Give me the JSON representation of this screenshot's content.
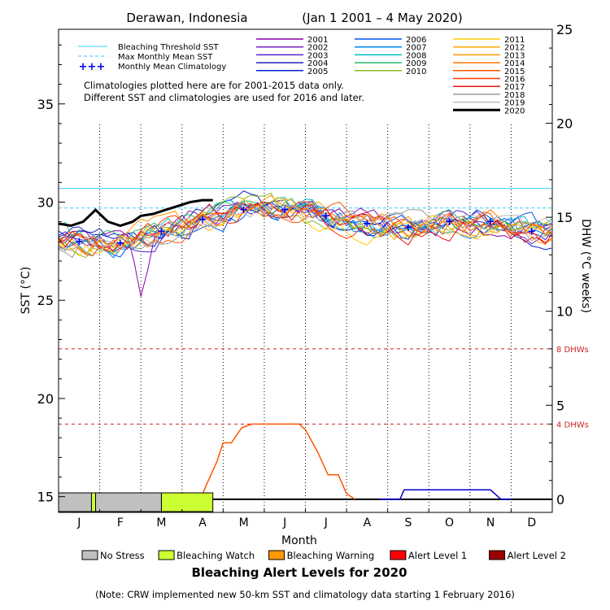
{
  "chart_data": {
    "type": "line",
    "title_left": "Derawan, Indonesia",
    "title_right": "(Jan 1 2001 – 4 May 2020)",
    "xlabel": "Month",
    "ylabel_left": "SST (°C)",
    "ylabel_right": "DHW (°C weeks)",
    "months": [
      "J",
      "F",
      "M",
      "A",
      "M",
      "J",
      "J",
      "A",
      "S",
      "O",
      "N",
      "D"
    ],
    "sst_axis": {
      "ylim": [
        14.2,
        38.8
      ],
      "ticks": [
        15,
        20,
        25,
        30,
        35
      ]
    },
    "dhw_axis": {
      "ylim": [
        -0.7,
        25
      ],
      "ticks": [
        0,
        5,
        10,
        15,
        20,
        25
      ]
    },
    "thresholds": {
      "bleaching_threshold_sst": 30.7,
      "max_monthly_mean_sst": 29.7,
      "dhw_8_level": 8,
      "dhw_4_level": 4,
      "dhw_8_label": "8 DHWs",
      "dhw_4_label": "4 DHWs",
      "ref_color": "#cc2222"
    },
    "legend_refs": [
      {
        "label": "Bleaching Threshold SST",
        "color": "#33ccff",
        "style": "solid"
      },
      {
        "label": "Max Monthly Mean SST",
        "color": "#33ccff",
        "style": "dashed"
      },
      {
        "label": "Monthly Mean Climatology",
        "color": "#0000ee",
        "style": "plus"
      }
    ],
    "monthly_mean_climatology": [
      28.0,
      27.9,
      28.5,
      29.1,
      29.6,
      29.6,
      29.3,
      28.9,
      28.7,
      29.0,
      29.0,
      28.5
    ],
    "year_series": [
      {
        "name": "2001",
        "color": "#8800aa"
      },
      {
        "name": "2002",
        "color": "#7722bb"
      },
      {
        "name": "2003",
        "color": "#5522cc"
      },
      {
        "name": "2004",
        "color": "#2222bb"
      },
      {
        "name": "2005",
        "color": "#0022cc"
      },
      {
        "name": "2006",
        "color": "#0055ee"
      },
      {
        "name": "2007",
        "color": "#0088ee"
      },
      {
        "name": "2008",
        "color": "#00bbcc"
      },
      {
        "name": "2009",
        "color": "#22bb66"
      },
      {
        "name": "2010",
        "color": "#88bb22"
      },
      {
        "name": "2011",
        "color": "#ffcc00"
      },
      {
        "name": "2012",
        "color": "#ffaa00"
      },
      {
        "name": "2013",
        "color": "#ff9900"
      },
      {
        "name": "2014",
        "color": "#ff7700"
      },
      {
        "name": "2015",
        "color": "#ff5500"
      },
      {
        "name": "2016",
        "color": "#ff3300"
      },
      {
        "name": "2017",
        "color": "#ee1111"
      },
      {
        "name": "2018",
        "color": "#999999"
      },
      {
        "name": "2019",
        "color": "#bbbbbb"
      },
      {
        "name": "2020",
        "color": "#000000"
      }
    ],
    "series_2020": {
      "name": "2020",
      "x_month": [
        0.0,
        0.3,
        0.6,
        0.9,
        1.2,
        1.5,
        1.8,
        2.0,
        2.3,
        2.6,
        2.9,
        3.2,
        3.5,
        3.75
      ],
      "sst": [
        28.9,
        28.8,
        29.0,
        29.6,
        29.0,
        28.8,
        29.0,
        29.3,
        29.4,
        29.6,
        29.8,
        30.0,
        30.1,
        30.1
      ]
    },
    "dhw_2020": {
      "color": "#ff5500",
      "x_month": [
        3.45,
        3.6,
        3.85,
        4.0,
        4.2,
        4.45,
        4.7,
        5.0,
        5.3,
        5.6,
        5.85,
        6.0,
        6.3,
        6.55,
        6.8,
        7.0,
        7.2
      ],
      "dhw": [
        0,
        0.8,
        2.0,
        3.0,
        3.0,
        3.8,
        4.0,
        4.0,
        4.0,
        4.0,
        4.0,
        3.7,
        2.5,
        1.3,
        1.3,
        0.3,
        0
      ]
    },
    "dhw_climatology": {
      "color": "#0000cc",
      "x_month": [
        7.8,
        8.3,
        8.4,
        10.5,
        10.75,
        11.0
      ],
      "dhw": [
        0,
        0,
        0.5,
        0.5,
        0,
        0
      ]
    },
    "baseline_dhw": 0,
    "alert_bar_2020": [
      {
        "from_month": 0.0,
        "to_month": 0.8,
        "level": "No Stress"
      },
      {
        "from_month": 0.8,
        "to_month": 0.9,
        "level": "Bleaching Watch"
      },
      {
        "from_month": 0.9,
        "to_month": 2.5,
        "level": "No Stress"
      },
      {
        "from_month": 2.5,
        "to_month": 3.75,
        "level": "Bleaching Watch"
      }
    ],
    "alert_legend": [
      {
        "label": "No Stress",
        "color": "#c0c0c0"
      },
      {
        "label": "Bleaching Watch",
        "color": "#ccff33"
      },
      {
        "label": "Bleaching Warning",
        "color": "#ff9900"
      },
      {
        "label": "Alert Level 1",
        "color": "#ff0000"
      },
      {
        "label": "Alert Level 2",
        "color": "#990000"
      }
    ],
    "alert_title": "Bleaching Alert Levels for 2020",
    "note_lines": [
      "Climatologies plotted here are for 2001-2015 data only.",
      "Different SST and climatologies are used for 2016 and later."
    ],
    "footer_note": "(Note: CRW implemented new 50-km SST and climatology data starting 1 February 2016)"
  }
}
